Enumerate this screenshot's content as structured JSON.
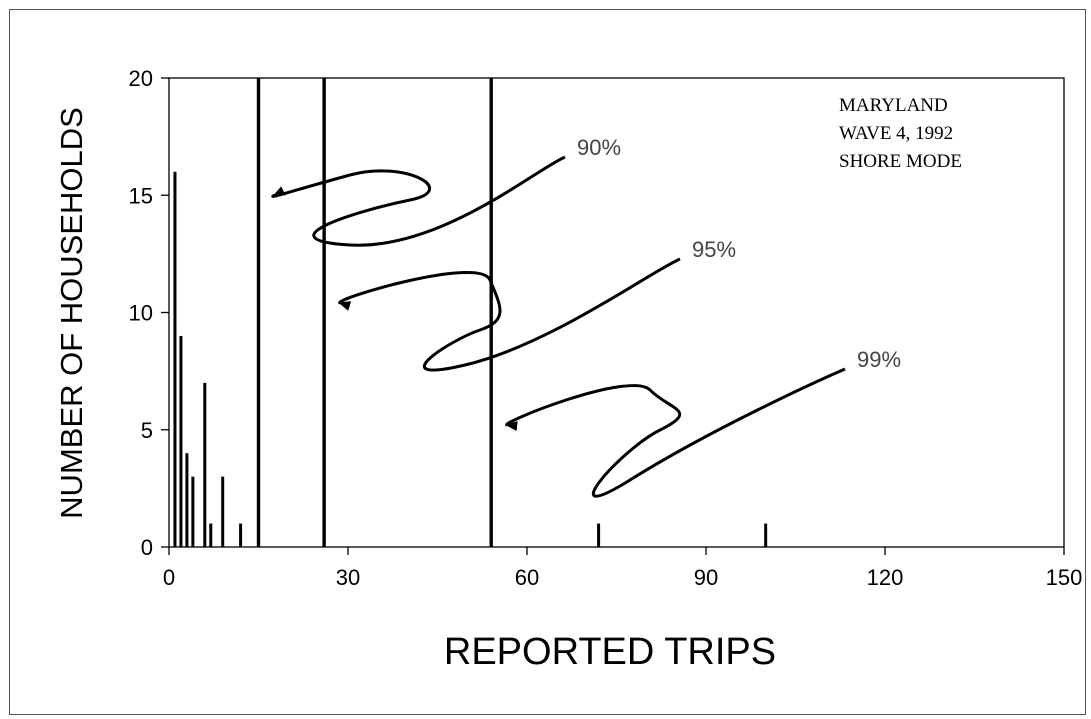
{
  "chart_data": {
    "type": "bar",
    "title": "",
    "xlabel": "REPORTED TRIPS",
    "ylabel": "NUMBER OF HOUSEHOLDS",
    "xlim": [
      0,
      150
    ],
    "ylim": [
      0,
      20
    ],
    "xticks": [
      0,
      30,
      60,
      90,
      120,
      150
    ],
    "yticks": [
      0,
      5,
      10,
      15,
      20
    ],
    "grid": false,
    "bar_color": "#000000",
    "series": [
      {
        "x": [
          1,
          2,
          3,
          4,
          6,
          7,
          9,
          12,
          72,
          100
        ],
        "values": [
          16,
          9,
          4,
          3,
          7,
          1,
          3,
          1,
          1,
          1
        ]
      }
    ],
    "annotation_lines": [
      {
        "x": 15,
        "label": "90%",
        "arrow_target_y": 15
      },
      {
        "x": 26,
        "label": "95%",
        "arrow_target_y": 10.4
      },
      {
        "x": 54,
        "label": "99%",
        "arrow_target_y": 5.2
      }
    ],
    "annotation_text": [
      "MARYLAND",
      "WAVE 4, 1992",
      "SHORE MODE"
    ]
  }
}
